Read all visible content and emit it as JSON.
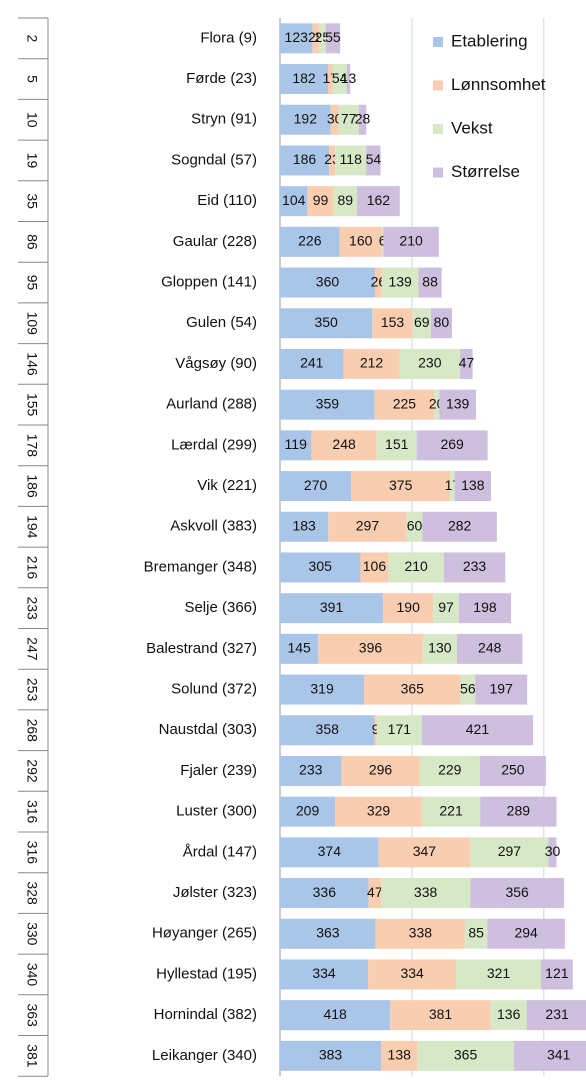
{
  "chart_data": {
    "type": "stacked_barh",
    "categories": [
      "Flora (9)",
      "Førde (23)",
      "Stryn (91)",
      "Sogndal (57)",
      "Eid (110)",
      "Gaular (228)",
      "Gloppen (141)",
      "Gulen (54)",
      "Vågsøy (90)",
      "Aurland (288)",
      "Lærdal (299)",
      "Vik (221)",
      "Askvoll (383)",
      "Bremanger (348)",
      "Selje (366)",
      "Balestrand (327)",
      "Solund (372)",
      "Naustdal (303)",
      "Fjaler (239)",
      "Luster (300)",
      "Årdal (147)",
      "Jølster (323)",
      "Høyanger (265)",
      "Hyllestad (195)",
      "Hornindal (382)",
      "Leikanger (340)"
    ],
    "ranks": [
      2,
      5,
      10,
      19,
      35,
      86,
      95,
      109,
      146,
      155,
      178,
      186,
      194,
      216,
      233,
      247,
      253,
      268,
      292,
      316,
      316,
      328,
      330,
      340,
      363,
      381
    ],
    "series": [
      {
        "name": "Etablering",
        "color": "#a9c6e8",
        "values": [
          123,
          182,
          192,
          186,
          104,
          226,
          360,
          350,
          241,
          359,
          119,
          270,
          183,
          305,
          391,
          145,
          319,
          358,
          233,
          209,
          374,
          336,
          363,
          334,
          418,
          383
        ]
      },
      {
        "name": "Lønnsomhet",
        "color": "#f9cdb0",
        "values": [
          25,
          17,
          30,
          23,
          99,
          160,
          26,
          153,
          212,
          225,
          248,
          375,
          297,
          106,
          190,
          396,
          365,
          9,
          296,
          329,
          347,
          47,
          338,
          334,
          381,
          138
        ]
      },
      {
        "name": "Vekst",
        "color": "#d6e8c6",
        "values": [
          25,
          54,
          77,
          118,
          89,
          6,
          139,
          69,
          230,
          20,
          151,
          17,
          60,
          210,
          97,
          130,
          56,
          171,
          229,
          221,
          297,
          338,
          85,
          321,
          136,
          365
        ]
      },
      {
        "name": "Størrelse",
        "color": "#cdbfdd",
        "values": [
          55,
          13,
          28,
          54,
          162,
          210,
          88,
          80,
          47,
          139,
          269,
          138,
          282,
          233,
          198,
          248,
          197,
          421,
          250,
          289,
          30,
          356,
          294,
          121,
          231,
          341
        ]
      }
    ],
    "xlim": [
      0,
      1160
    ],
    "xticks": [
      0,
      500,
      1000
    ],
    "grid": true,
    "legend": "upper right"
  }
}
